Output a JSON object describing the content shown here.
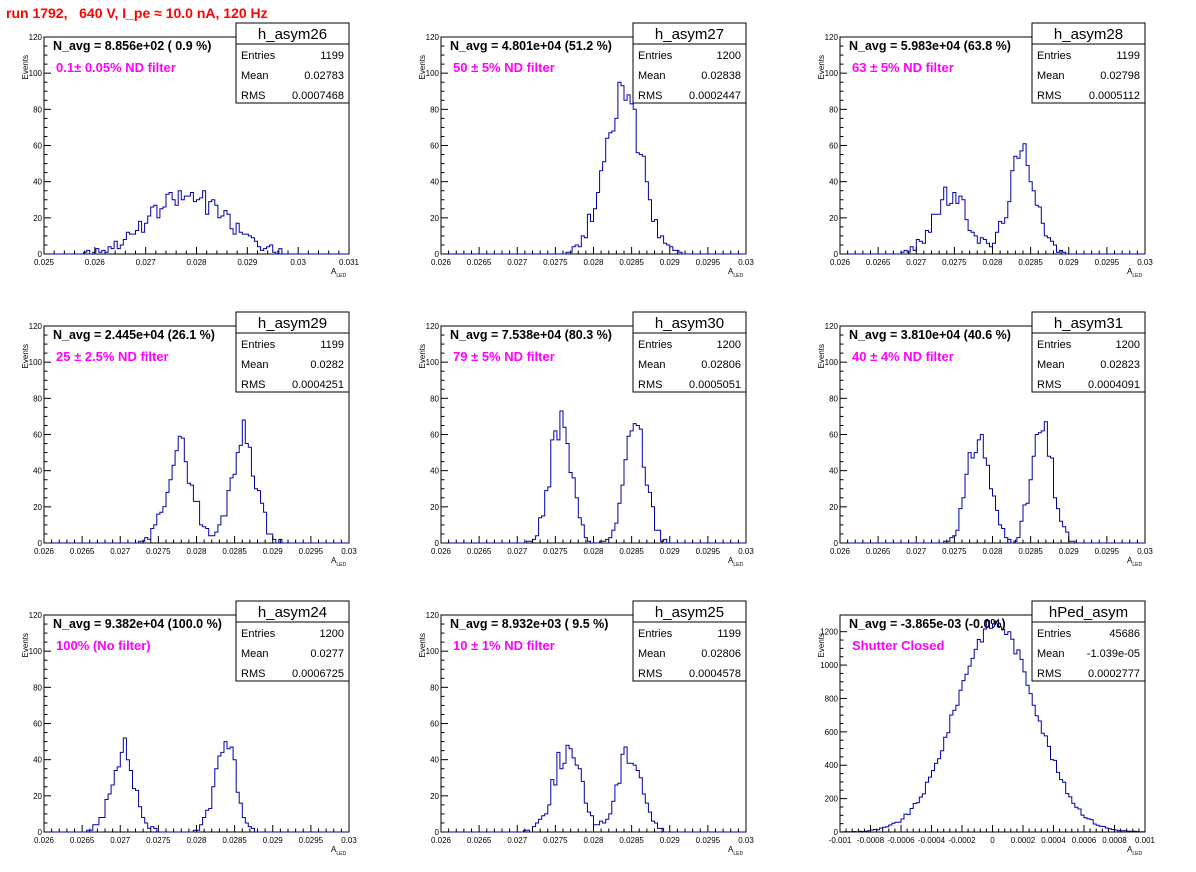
{
  "page": {
    "title": "run 1792,   640 V, I_pe ≈ 10.0 nA, 120 Hz"
  },
  "common": {
    "ylabel": "Events",
    "xlabel_main": "A",
    "xlabel_sub": "LED",
    "stat_labels": [
      "Entries",
      "Mean",
      "RMS"
    ]
  },
  "chart_data": [
    {
      "type": "bar",
      "name": "h_asym26",
      "navg_text": "N_avg = 8.856e+02 ( 0.9 %)",
      "filter_text": "0.1± 0.05% ND filter",
      "stats": {
        "Entries": "1199",
        "Mean": "0.02783",
        "RMS": "0.0007468"
      },
      "xlim": [
        0.025,
        0.031
      ],
      "ylim": [
        0,
        120
      ],
      "xticks": [
        "0.025",
        "0.026",
        "0.027",
        "0.028",
        "0.029",
        "0.03",
        "0.031"
      ],
      "yticks": [
        "0",
        "20",
        "40",
        "60",
        "80",
        "100",
        "120"
      ],
      "peaks": [
        [
          0.02783,
          0.00075,
          32,
          1199
        ]
      ],
      "seed": 26
    },
    {
      "type": "bar",
      "name": "h_asym27",
      "navg_text": "N_avg = 4.801e+04 (51.2 %)",
      "filter_text": "50 ± 5% ND filter",
      "stats": {
        "Entries": "1200",
        "Mean": "0.02838",
        "RMS": "0.0002447"
      },
      "xlim": [
        0.026,
        0.03
      ],
      "ylim": [
        0,
        120
      ],
      "xticks": [
        "0.026",
        "0.0265",
        "0.027",
        "0.0275",
        "0.028",
        "0.0285",
        "0.029",
        "0.0295",
        "0.03"
      ],
      "yticks": [
        "0",
        "20",
        "40",
        "60",
        "80",
        "100",
        "120"
      ],
      "peaks": [
        [
          0.02838,
          0.000245,
          88,
          1200
        ]
      ],
      "seed": 27
    },
    {
      "type": "bar",
      "name": "h_asym28",
      "navg_text": "N_avg = 5.983e+04 (63.8 %)",
      "filter_text": "63 ± 5% ND filter",
      "stats": {
        "Entries": "1199",
        "Mean": "0.02798",
        "RMS": "0.0005112"
      },
      "xlim": [
        0.026,
        0.03
      ],
      "ylim": [
        0,
        120
      ],
      "xticks": [
        "0.026",
        "0.0265",
        "0.027",
        "0.0275",
        "0.028",
        "0.0285",
        "0.029",
        "0.0295",
        "0.03"
      ],
      "yticks": [
        "0",
        "20",
        "40",
        "60",
        "80",
        "100",
        "120"
      ],
      "peaks": [
        [
          0.02745,
          0.00023,
          32,
          600
        ],
        [
          0.0284,
          0.00018,
          55,
          599
        ]
      ],
      "seed": 28
    },
    {
      "type": "bar",
      "name": "h_asym29",
      "navg_text": "N_avg = 2.445e+04 (26.1 %)",
      "filter_text": "25 ± 2.5% ND filter",
      "stats": {
        "Entries": "1199",
        "Mean": "0.0282",
        "RMS": "0.0004251"
      },
      "xlim": [
        0.026,
        0.03
      ],
      "ylim": [
        0,
        120
      ],
      "xticks": [
        "0.026",
        "0.0265",
        "0.027",
        "0.0275",
        "0.028",
        "0.0285",
        "0.029",
        "0.0295",
        "0.03"
      ],
      "yticks": [
        "0",
        "20",
        "40",
        "60",
        "80",
        "100",
        "120"
      ],
      "peaks": [
        [
          0.02778,
          0.00017,
          52,
          600
        ],
        [
          0.02862,
          0.00016,
          60,
          599
        ]
      ],
      "seed": 29
    },
    {
      "type": "bar",
      "name": "h_asym30",
      "navg_text": "N_avg = 7.538e+04 (80.3 %)",
      "filter_text": "79 ± 5% ND filter",
      "stats": {
        "Entries": "1200",
        "Mean": "0.02806",
        "RMS": "0.0005051"
      },
      "xlim": [
        0.026,
        0.03
      ],
      "ylim": [
        0,
        120
      ],
      "xticks": [
        "0.026",
        "0.0265",
        "0.027",
        "0.0275",
        "0.028",
        "0.0285",
        "0.029",
        "0.0295",
        "0.03"
      ],
      "yticks": [
        "0",
        "20",
        "40",
        "60",
        "80",
        "100",
        "120"
      ],
      "peaks": [
        [
          0.02757,
          0.00014,
          66,
          600
        ],
        [
          0.02855,
          0.00014,
          64,
          600
        ]
      ],
      "seed": 30
    },
    {
      "type": "bar",
      "name": "h_asym31",
      "navg_text": "N_avg = 3.810e+04 (40.6 %)",
      "filter_text": "40 ± 4% ND filter",
      "stats": {
        "Entries": "1200",
        "Mean": "0.02823",
        "RMS": "0.0004091"
      },
      "xlim": [
        0.026,
        0.03
      ],
      "ylim": [
        0,
        120
      ],
      "xticks": [
        "0.026",
        "0.0265",
        "0.027",
        "0.0275",
        "0.028",
        "0.0285",
        "0.029",
        "0.0295",
        "0.03"
      ],
      "yticks": [
        "0",
        "20",
        "40",
        "60",
        "80",
        "100",
        "120"
      ],
      "peaks": [
        [
          0.02782,
          0.00015,
          58,
          600
        ],
        [
          0.02865,
          0.00014,
          62,
          600
        ]
      ],
      "seed": 31
    },
    {
      "type": "bar",
      "name": "h_asym24",
      "navg_text": "N_avg = 9.382e+04 (100.0 %)",
      "filter_text": "100% (No filter)",
      "stats": {
        "Entries": "1200",
        "Mean": "0.0277",
        "RMS": "0.0006725"
      },
      "xlim": [
        0.026,
        0.03
      ],
      "ylim": [
        0,
        120
      ],
      "xticks": [
        "0.026",
        "0.0265",
        "0.027",
        "0.0275",
        "0.028",
        "0.0285",
        "0.029",
        "0.0295",
        "0.03"
      ],
      "yticks": [
        "0",
        "20",
        "40",
        "60",
        "80",
        "100",
        "120"
      ],
      "peaks": [
        [
          0.02703,
          0.00015,
          46,
          600
        ],
        [
          0.02838,
          0.00014,
          50,
          600
        ]
      ],
      "seed": 24
    },
    {
      "type": "bar",
      "name": "h_asym25",
      "navg_text": "N_avg = 8.932e+03 ( 9.5 %)",
      "filter_text": "10 ± 1% ND filter",
      "stats": {
        "Entries": "1199",
        "Mean": "0.02806",
        "RMS": "0.0004578"
      },
      "xlim": [
        0.026,
        0.03
      ],
      "ylim": [
        0,
        120
      ],
      "xticks": [
        "0.026",
        "0.0265",
        "0.027",
        "0.0275",
        "0.028",
        "0.0285",
        "0.029",
        "0.0295",
        "0.03"
      ],
      "yticks": [
        "0",
        "20",
        "40",
        "60",
        "80",
        "100",
        "120"
      ],
      "peaks": [
        [
          0.02765,
          0.00018,
          45,
          600
        ],
        [
          0.02848,
          0.00016,
          45,
          599
        ]
      ],
      "seed": 25
    },
    {
      "type": "bar",
      "name": "hPed_asym",
      "navg_text": "N_avg = -3.865e-03 (-0.0%)",
      "filter_text": "Shutter Closed",
      "stats": {
        "Entries": "45686",
        "Mean": "-1.039e-05",
        "RMS": "0.0002777"
      },
      "xlim": [
        -0.001,
        0.001
      ],
      "ylim": [
        0,
        1300
      ],
      "xticks": [
        "-0.001",
        "-0.0008",
        "-0.0006",
        "-0.0004",
        "-0.0002",
        "0",
        "0.0002",
        "0.0004",
        "0.0006",
        "0.0008",
        "0.001"
      ],
      "yticks": [
        "0",
        "200",
        "400",
        "600",
        "800",
        "1000",
        "1200"
      ],
      "peaks": [
        [
          2e-05,
          0.00026,
          1250,
          45686
        ]
      ],
      "seed": 9
    }
  ]
}
